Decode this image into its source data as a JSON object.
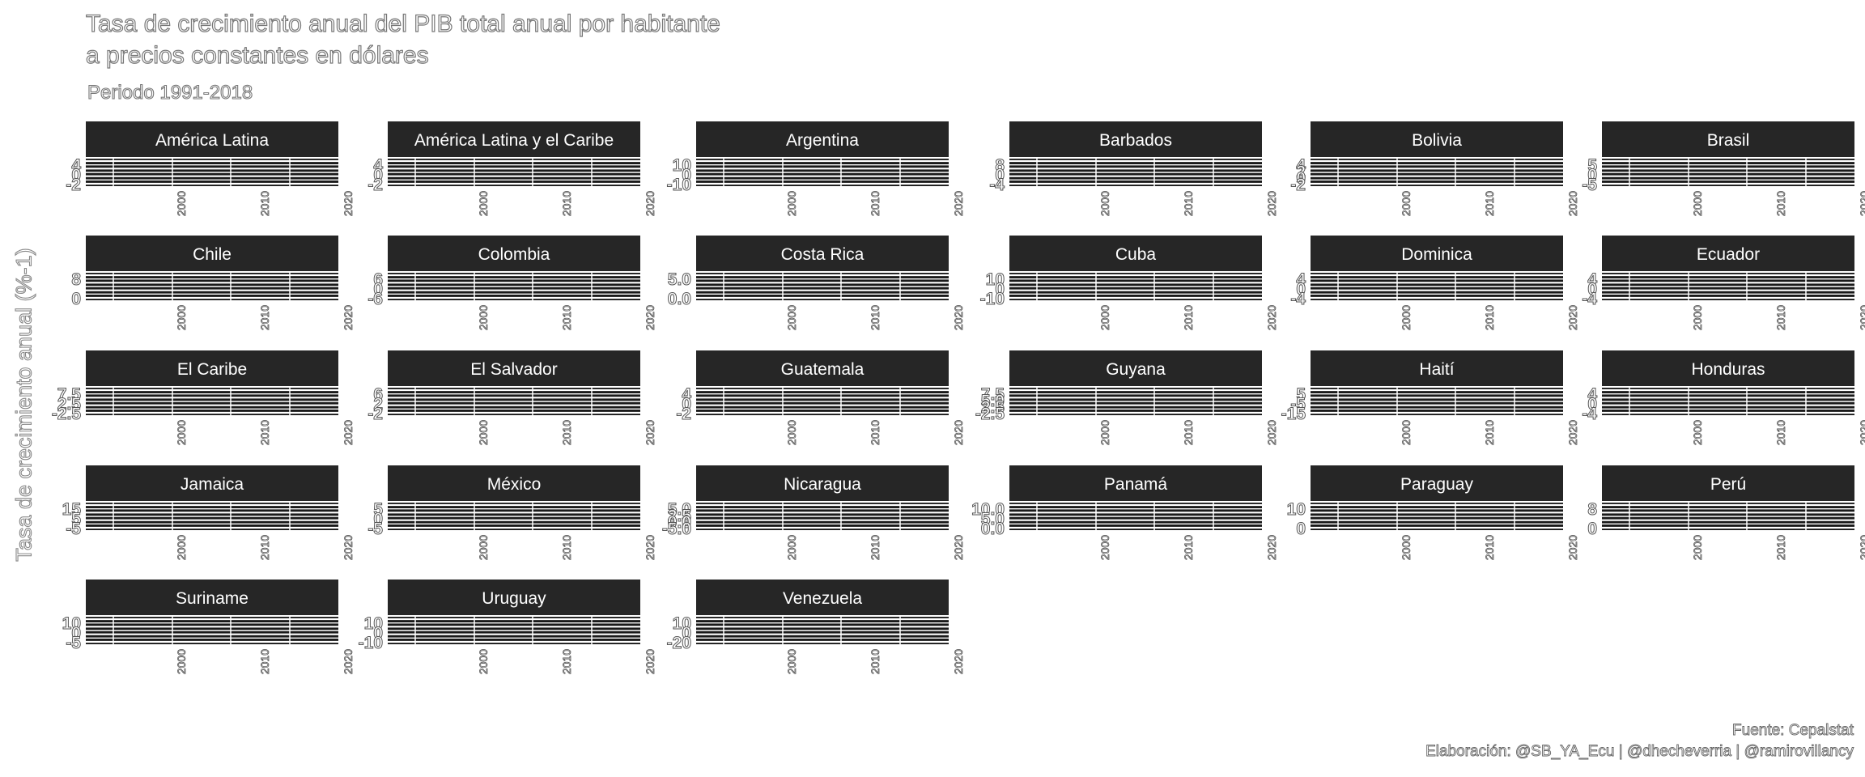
{
  "title_lines": [
    "Tasa de crecimiento anual del PIB total anual por habitante",
    "a precios constantes en dólares"
  ],
  "subtitle": "Periodo 1991-2018",
  "ylabel": "Tasa de crecimiento anual (%-1)",
  "caption_lines": [
    "Fuente: Cepalstat",
    "Elaboración: @SB_YA_Ecu | @dhecheverria | @ramirovillancy"
  ],
  "colors": {
    "strip": "#262626",
    "panel": "#ffffff",
    "grid": "#ffffff",
    "gridline_dark": "#1a1a1a",
    "text_outline": "#777777"
  },
  "chart_data": {
    "type": "line",
    "facet_wrap": true,
    "x_ticks": [
      "2000",
      "2010",
      "2020"
    ],
    "panels": [
      {
        "name": "América Latina",
        "y_ticks": [
          "4",
          "0",
          "-2"
        ]
      },
      {
        "name": "América Latina y el Caribe",
        "y_ticks": [
          "4",
          "0",
          "-2"
        ]
      },
      {
        "name": "Argentina",
        "y_ticks": [
          "10",
          "0",
          "-10"
        ]
      },
      {
        "name": "Barbados",
        "y_ticks": [
          "8",
          "0",
          "-4"
        ]
      },
      {
        "name": "Bolivia",
        "y_ticks": [
          "4",
          "2",
          "0",
          "-2"
        ]
      },
      {
        "name": "Brasil",
        "y_ticks": [
          "5",
          "0",
          "-5"
        ]
      },
      {
        "name": "Chile",
        "y_ticks": [
          "8",
          "0"
        ]
      },
      {
        "name": "Colombia",
        "y_ticks": [
          "6",
          "0",
          "-6"
        ]
      },
      {
        "name": "Costa Rica",
        "y_ticks": [
          "5.0",
          "0.0"
        ]
      },
      {
        "name": "Cuba",
        "y_ticks": [
          "10",
          "0",
          "-10"
        ]
      },
      {
        "name": "Dominica",
        "y_ticks": [
          "4",
          "0",
          "-4"
        ]
      },
      {
        "name": "Ecuador",
        "y_ticks": [
          "4",
          "0",
          "-4"
        ]
      },
      {
        "name": "El Caribe",
        "y_ticks": [
          "7.5",
          "2.5",
          "-2.5"
        ]
      },
      {
        "name": "El Salvador",
        "y_ticks": [
          "6",
          "2",
          "-2"
        ]
      },
      {
        "name": "Guatemala",
        "y_ticks": [
          "4",
          "0",
          "-2"
        ]
      },
      {
        "name": "Guyana",
        "y_ticks": [
          "7.5",
          "5.0",
          "2.5",
          "-2.5"
        ]
      },
      {
        "name": "Haití",
        "y_ticks": [
          "5",
          "-5",
          "-15"
        ]
      },
      {
        "name": "Honduras",
        "y_ticks": [
          "4",
          "0",
          "-4"
        ]
      },
      {
        "name": "Jamaica",
        "y_ticks": [
          "15",
          "5",
          "-5"
        ]
      },
      {
        "name": "México",
        "y_ticks": [
          "5",
          "0",
          "-5"
        ]
      },
      {
        "name": "Nicaragua",
        "y_ticks": [
          "5.0",
          "2.5",
          "0.0",
          "-5.0"
        ]
      },
      {
        "name": "Panamá",
        "y_ticks": [
          "10.0",
          "5.0",
          "0.0"
        ]
      },
      {
        "name": "Paraguay",
        "y_ticks": [
          "10",
          "0"
        ]
      },
      {
        "name": "Perú",
        "y_ticks": [
          "8",
          "0"
        ]
      },
      {
        "name": "Suriname",
        "y_ticks": [
          "10",
          "0",
          "-5"
        ]
      },
      {
        "name": "Uruguay",
        "y_ticks": [
          "10",
          "0",
          "-10"
        ]
      },
      {
        "name": "Venezuela",
        "y_ticks": [
          "10",
          "0",
          "-20"
        ]
      }
    ]
  }
}
